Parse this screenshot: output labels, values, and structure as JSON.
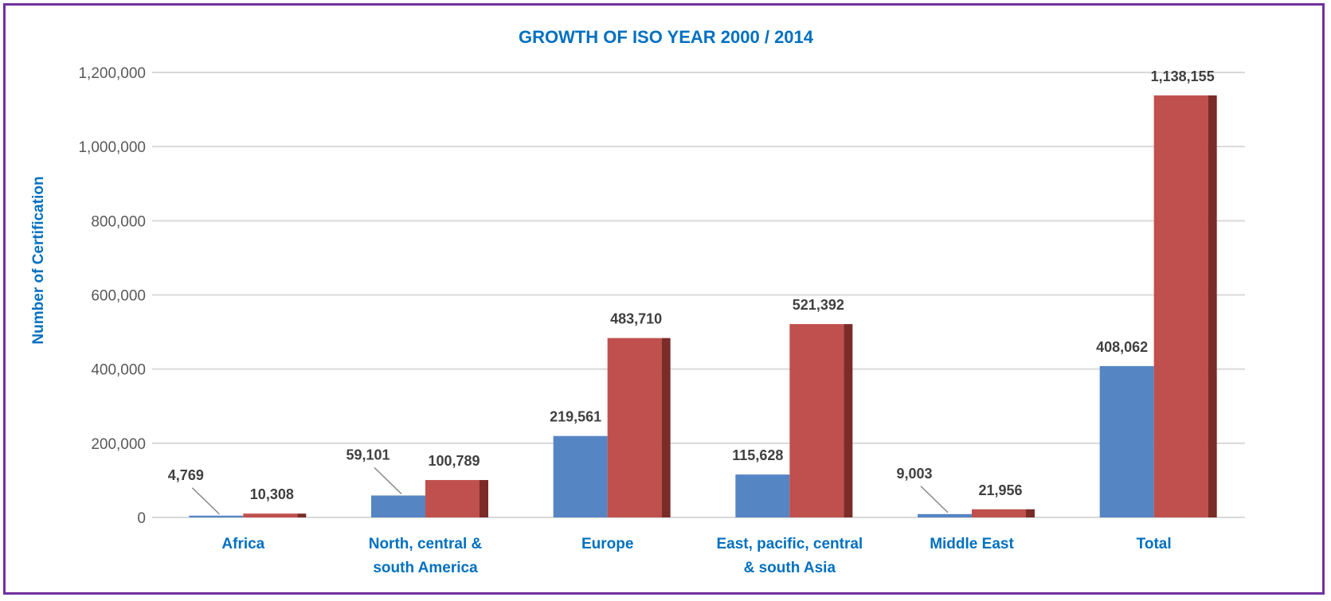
{
  "chart_data": {
    "type": "bar",
    "title": "GROWTH OF ISO YEAR 2000 / 2014",
    "ylabel": "Number of Certification",
    "xlabel": "",
    "categories": [
      [
        "Africa"
      ],
      [
        "North, central &",
        "south America"
      ],
      [
        "Europe"
      ],
      [
        "East, pacific, central",
        "& south Asia"
      ],
      [
        "Middle East"
      ],
      [
        "Total"
      ]
    ],
    "series": [
      {
        "values": [
          4769,
          59101,
          219561,
          115628,
          9003,
          408062
        ],
        "color": "#5685c4"
      },
      {
        "values": [
          10308,
          100789,
          483710,
          521392,
          21956,
          1138155
        ],
        "color": "#c0504d",
        "side_color": "#7b2b28"
      }
    ],
    "data_labels": [
      [
        "4,769",
        "59,101",
        "219,561",
        "115,628",
        "9,003",
        "408,062"
      ],
      [
        "10,308",
        "100,789",
        "483,710",
        "521,392",
        "21,956",
        "1,138,155"
      ]
    ],
    "yticks": [
      "0",
      "200,000",
      "400,000",
      "600,000",
      "800,000",
      "1,000,000",
      "1,200,000"
    ],
    "ylim": [
      0,
      1200000
    ],
    "grid": true,
    "legend": "none",
    "colors": {
      "title": "#0070c0",
      "axis_title": "#0070c0",
      "category_labels": "#0070c0",
      "gridline": "#d9d9d9",
      "border": "#7030a0"
    }
  }
}
